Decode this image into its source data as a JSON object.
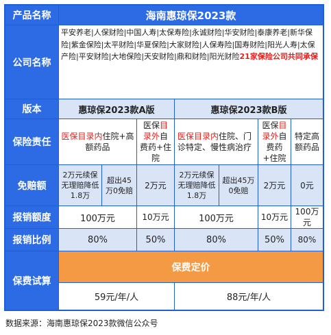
{
  "header": {
    "col_label": "产品名称",
    "product": "海南惠琼保2023款"
  },
  "companies": {
    "label": "公司名称",
    "text": "平安养老|人保财险|中国人寿|太保寿险|永诚财险|华安财险|泰康养老|新华保险|紫金保险|太平财险|华夏保险|大家财险|人保寿险|国寿财险|阳光人寿|太保产险|平安财险|大地保险|天安财险|鼎和财险|阳光财险",
    "highlight": "21家保险公司共同承保"
  },
  "versions": {
    "label": "版本",
    "a": "惠琼保2023款A版",
    "b": "惠琼保2023款B版"
  },
  "coverage": {
    "label": "保险责任",
    "a1_red": "医保目录内",
    "a1_rest": "住院+高额药品",
    "a2_pre": "医保",
    "a2_red": "目录外",
    "a2_rest": "自费药+住院",
    "b1_red": "医保目录内",
    "b1_rest": "住院、门诊特定、慢性病治疗",
    "b2_pre": "医保",
    "b2_red": "目录外",
    "b2_rest": "自费药+住院",
    "b3": "特定高额药品"
  },
  "deductible": {
    "label": "免赔额",
    "a1": "2万元续保无理赔降低1.8万",
    "a2": "超出45万0免赔",
    "a3": "2万元",
    "b1": "2万元续保无理赔降低1.8万",
    "b2": "超出45万0免赔",
    "b3": "2万元",
    "b4": "0元"
  },
  "limit": {
    "label": "报销额度",
    "a1": "100万元",
    "a2": "10万元",
    "b1": "100万元",
    "b2": "10万元",
    "b3": "100万元"
  },
  "ratio": {
    "label": "报销比例",
    "a1": "80%",
    "a2": "50%",
    "b1": "80%",
    "b2": "50%",
    "b3": "80%"
  },
  "price": {
    "label": "保费试算",
    "heading": "保费定价",
    "a": "59元/年/人",
    "b": "88元/年/人"
  },
  "source": "数据来源：海南惠琼保2023款微信公众号",
  "colors": {
    "border": "#1e5fd6",
    "header_blue": "#2d6be4",
    "light_blue": "#d9e5f7",
    "orange": "#f49a45",
    "red": "#e4201c"
  }
}
